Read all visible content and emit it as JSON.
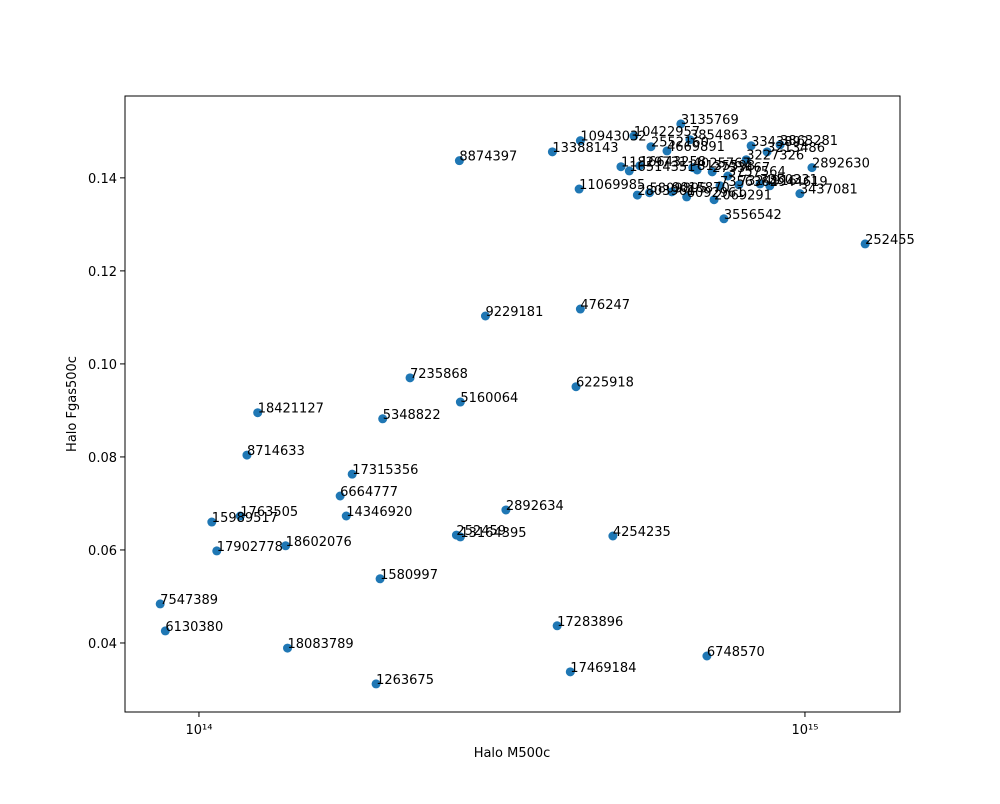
{
  "chart_data": {
    "type": "scatter",
    "xlabel": "Halo M500c",
    "ylabel": "Halo Fgas500c",
    "xscale": "log",
    "color": "#1f77b4",
    "xlim": [
      75500000000000.0,
      1435000000000000.0
    ],
    "ylim": [
      0.02516,
      0.1576
    ],
    "xticks": [
      {
        "value": 100000000000000.0,
        "label": "10¹⁴"
      },
      {
        "value": 1000000000000000.0,
        "label": "10¹⁵"
      }
    ],
    "yticks": [
      0.04,
      0.06,
      0.08,
      {
        "value": 0.1,
        "label": "0.10"
      },
      0.12,
      0.14
    ],
    "x": [
      1257000000000000.0,
      1027000000000000.0,
      624000000000000.0,
      735000000000000.0,
      426000000000000.0,
      297000000000000.0,
      269000000000000.0,
      383000000000000.0,
      426000000000000.0,
      522000000000000.0,
      424000000000000.0,
      223000000000000.0,
      270000000000000.0,
      419000000000000.0,
      201000000000000.0,
      125000000000000.0,
      120000000000000.0,
      179000000000000.0,
      171000000000000.0,
      175000000000000.0,
      321000000000000.0,
      117000000000000.0,
      105000000000000.0,
      107000000000000.0,
      139000000000000.0,
      266000000000000.0,
      270000000000000.0,
      482000000000000.0,
      199000000000000.0,
      86300000000000.0,
      88000000000000.0,
      140000000000000.0,
      196000000000000.0,
      390000000000000.0,
      410000000000000.0,
      689000000000000.0,
      646000000000000.0,
      815000000000000.0,
      910000000000000.0,
      866000000000000.0,
      497000000000000.0,
      534000000000000.0,
      513000000000000.0,
      592000000000000.0,
      557000000000000.0,
      653000000000000.0,
      664000000000000.0,
      703000000000000.0,
      800000000000000.0,
      746000000000000.0,
      724000000000000.0,
      778000000000000.0,
      875000000000000.0,
      981000000000000.0,
      529000000000000.0,
      554000000000000.0,
      603000000000000.0,
      638000000000000.0,
      708000000000000.0,
      843000000000000.0
    ],
    "values": [
      0.1258,
      0.1422,
      0.1516,
      0.1312,
      0.1118,
      0.1103,
      0.1437,
      0.1456,
      0.148,
      0.149,
      0.1376,
      0.097,
      0.0918,
      0.0951,
      0.0882,
      0.0895,
      0.0804,
      0.0763,
      0.0716,
      0.0673,
      0.0686,
      0.0673,
      0.066,
      0.0598,
      0.0609,
      0.0632,
      0.0628,
      0.063,
      0.0538,
      0.0484,
      0.0426,
      0.0389,
      0.0312,
      0.0437,
      0.0338,
      0.0372,
      0.1482,
      0.1469,
      0.1471,
      0.1456,
      0.1424,
      0.1426,
      0.1415,
      0.1458,
      0.1467,
      0.1422,
      0.1417,
      0.1413,
      0.1439,
      0.1404,
      0.1383,
      0.1385,
      0.1383,
      0.1366,
      0.1363,
      0.1368,
      0.137,
      0.1359,
      0.1353,
      0.1387
    ],
    "point_labels": [
      "252455",
      "2892630",
      "3135769",
      "3556542",
      "476247",
      "9229181",
      "8874397",
      "13388143",
      "10943032",
      "10422957",
      "11069985",
      "7235868",
      "5160064",
      "6225918",
      "5348822",
      "18421127",
      "8714633",
      "17315356",
      "6664777",
      "14346920",
      "2892634",
      "1763505",
      "15989517",
      "17902778",
      "18602076",
      "252459",
      "13164395",
      "4254235",
      "1580997",
      "7547389",
      "6130380",
      "18083789",
      "1263675",
      "17283896",
      "17469184",
      "6748570",
      "3854863",
      "3343892",
      "3863281",
      "3213486",
      "11829731",
      "16643258",
      "16514351",
      "4669891",
      "2552160",
      "4025767",
      "8135598",
      "2733467",
      "3227326",
      "3757564",
      "7356364",
      "7324916",
      "2944619",
      "3437081",
      "2803961",
      "5809895",
      "9015870",
      "6092961",
      "2069291",
      "7350331"
    ]
  }
}
